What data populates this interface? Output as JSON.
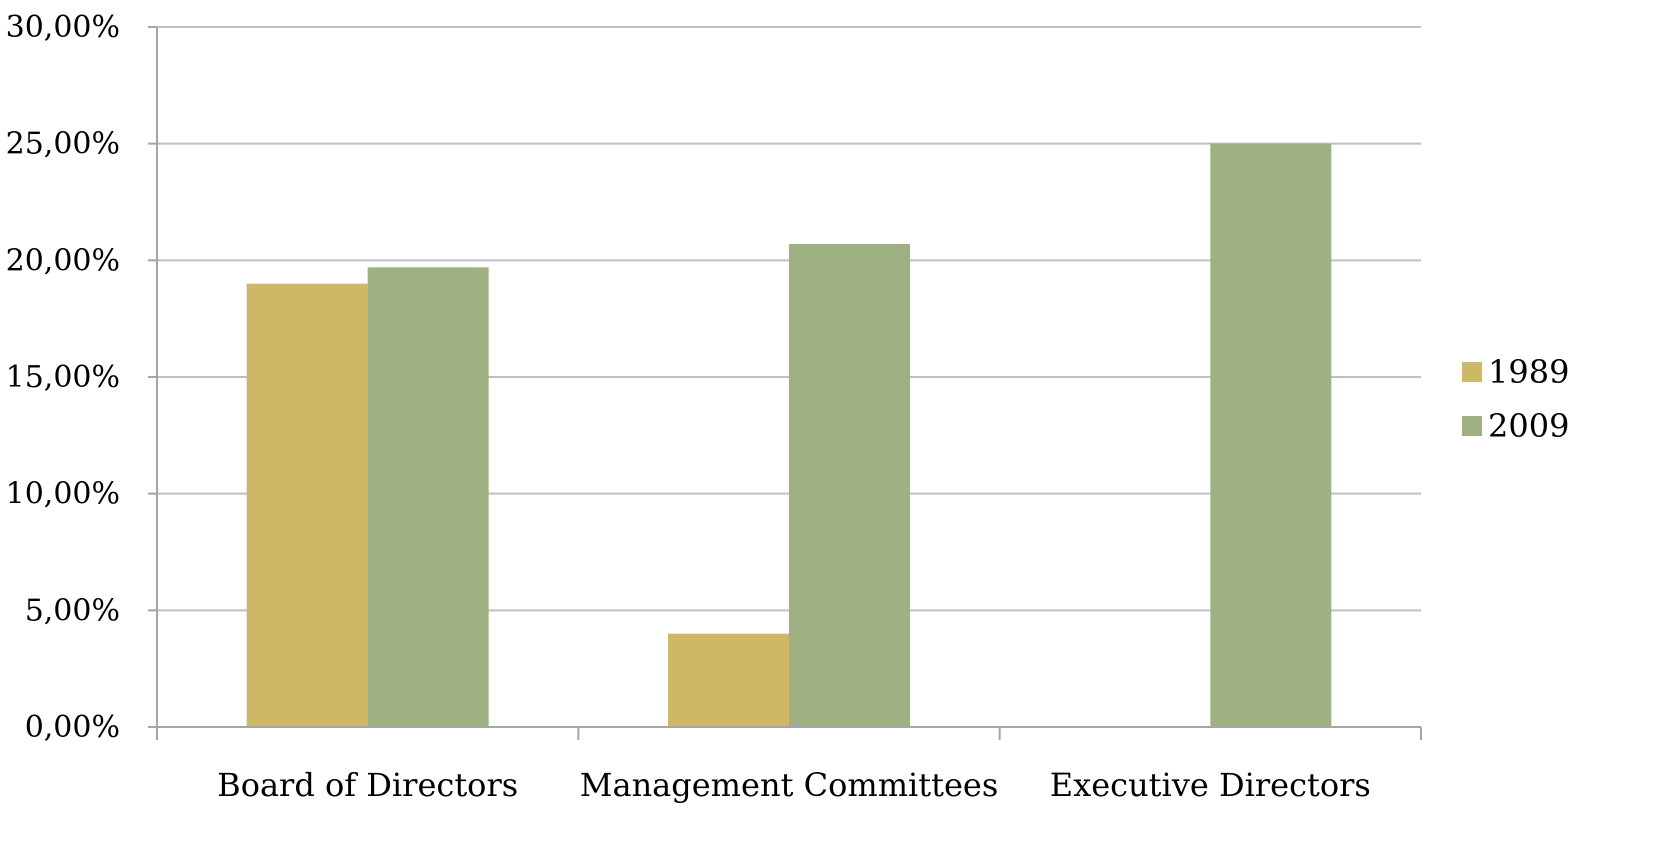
{
  "chart_data": {
    "type": "bar",
    "categories": [
      "Board of Directors",
      "Management Committees",
      "Executive Directors"
    ],
    "series": [
      {
        "name": "1989",
        "color": "#CDB866",
        "values": [
          19.0,
          4.0,
          0.0
        ]
      },
      {
        "name": "2009",
        "color": "#9DB183",
        "values": [
          19.7,
          20.7,
          25.0
        ]
      }
    ],
    "yticks": [
      {
        "value": 0,
        "label": "0,00%"
      },
      {
        "value": 5,
        "label": "5,00%"
      },
      {
        "value": 10,
        "label": "10,00%"
      },
      {
        "value": 15,
        "label": "15,00%"
      },
      {
        "value": 20,
        "label": "20,00%"
      },
      {
        "value": 25,
        "label": "25,00%"
      },
      {
        "value": 30,
        "label": "30,00%"
      }
    ],
    "ylim": [
      0,
      30
    ],
    "grid": true,
    "legend_position": "right",
    "title": "",
    "xlabel": "",
    "ylabel": "",
    "gridline_color": "#BFBFBF",
    "axis_color": "#A6A6A6"
  }
}
